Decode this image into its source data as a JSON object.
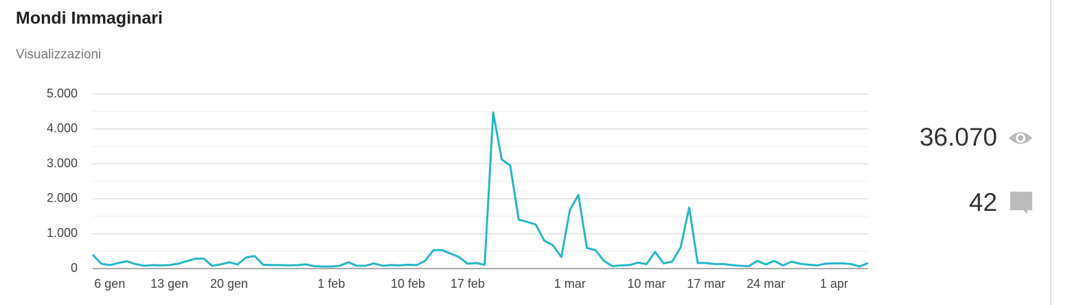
{
  "header": {
    "title": "Mondi Immaginari",
    "subtitle": "Visualizzazioni"
  },
  "chart_data": {
    "type": "line",
    "categories": [
      null,
      null,
      "6 gen",
      null,
      null,
      null,
      null,
      null,
      null,
      "13 gen",
      null,
      null,
      null,
      null,
      null,
      null,
      "20 gen",
      null,
      null,
      null,
      null,
      null,
      null,
      null,
      null,
      null,
      null,
      null,
      "1 feb",
      null,
      null,
      null,
      null,
      null,
      null,
      null,
      null,
      "10 feb",
      null,
      null,
      null,
      null,
      null,
      null,
      "17 feb",
      null,
      null,
      null,
      null,
      null,
      null,
      null,
      null,
      null,
      null,
      null,
      "1 mar",
      null,
      null,
      null,
      null,
      null,
      null,
      null,
      null,
      "10 mar",
      null,
      null,
      null,
      null,
      null,
      null,
      "17 mar",
      null,
      null,
      null,
      null,
      null,
      null,
      "24 mar",
      null,
      null,
      null,
      null,
      null,
      null,
      null,
      "1 apr",
      null,
      null,
      null,
      null
    ],
    "values": [
      400,
      140,
      100,
      160,
      210,
      130,
      80,
      100,
      90,
      100,
      140,
      210,
      280,
      290,
      80,
      120,
      180,
      120,
      320,
      360,
      110,
      100,
      100,
      90,
      100,
      120,
      70,
      60,
      60,
      80,
      180,
      80,
      80,
      150,
      80,
      100,
      90,
      110,
      100,
      220,
      530,
      530,
      430,
      330,
      140,
      160,
      110,
      4470,
      3130,
      2950,
      1400,
      1340,
      1260,
      800,
      670,
      330,
      1680,
      2110,
      590,
      530,
      220,
      70,
      90,
      100,
      170,
      130,
      480,
      150,
      200,
      610,
      1750,
      160,
      160,
      130,
      130,
      100,
      80,
      70,
      220,
      120,
      220,
      90,
      200,
      140,
      110,
      90,
      140,
      150,
      150,
      130,
      60,
      160
    ],
    "color": "#26b6c8",
    "ylim": [
      0,
      5000
    ],
    "yticks": [
      0,
      {
        "value": 1000,
        "label": "1.000"
      },
      {
        "value": 2000,
        "label": "2.000"
      },
      {
        "value": 3000,
        "label": "3.000"
      },
      {
        "value": 4000,
        "label": "4.000"
      },
      {
        "value": 5000,
        "label": "5.000"
      }
    ],
    "minor_yticks": [
      500,
      1500,
      2500,
      3500,
      4500
    ],
    "grid": true
  },
  "stats": {
    "views": "36.070",
    "comments": "42"
  }
}
